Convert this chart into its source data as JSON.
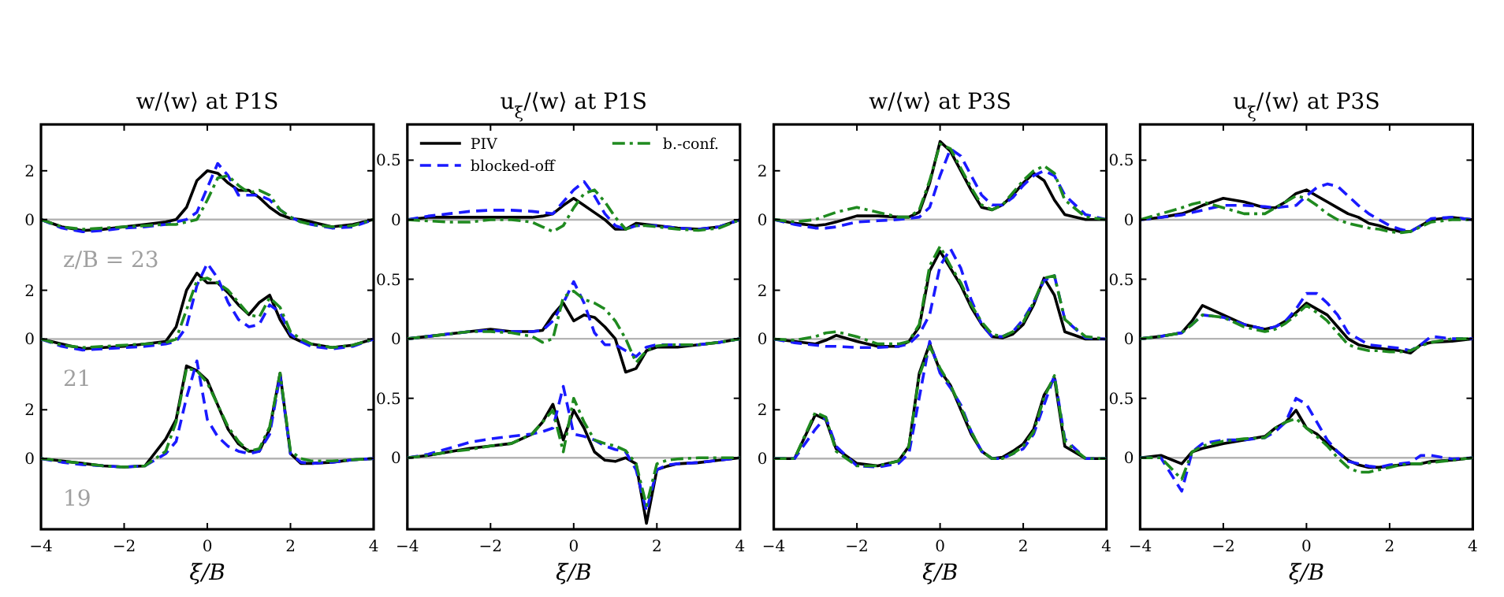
{
  "chart_data": [
    {
      "type": "line",
      "title": "w/⟨w⟩ at P1S",
      "tick_labels": "y",
      "x": [
        -4,
        -3.5,
        -3,
        -2.5,
        -2,
        -1.5,
        -1,
        -0.75,
        -0.5,
        -0.25,
        0,
        0.25,
        0.5,
        0.75,
        1,
        1.25,
        1.5,
        1.75,
        2,
        2.25,
        2.5,
        3,
        3.5,
        4
      ],
      "xlim": [
        -4,
        4
      ],
      "ylim": [
        -12.7,
        3.9
      ],
      "yticks": [
        0,
        2
      ],
      "ref_lines": [
        {
          "axis": "y",
          "value": 0,
          "color": "#b4b4b4"
        }
      ],
      "annotations": [
        "z/B = 23"
      ],
      "series": [
        {
          "color": "#000000",
          "line_style": "solid",
          "values": [
            0,
            -0.3,
            -0.45,
            -0.4,
            -0.3,
            -0.2,
            -0.1,
            0,
            0.5,
            1.6,
            2.0,
            1.9,
            1.5,
            1.2,
            1.2,
            0.9,
            0.5,
            0.2,
            0.05,
            0,
            -0.1,
            -0.3,
            -0.2,
            0
          ]
        },
        {
          "color": "#1a1aff",
          "line_style": "dashed",
          "values": [
            0,
            -0.35,
            -0.5,
            -0.45,
            -0.35,
            -0.3,
            -0.2,
            -0.1,
            0,
            0.3,
            1.3,
            2.3,
            1.8,
            1.0,
            1.0,
            1.0,
            0.8,
            0.4,
            0.1,
            -0.1,
            -0.2,
            -0.35,
            -0.3,
            0
          ]
        },
        {
          "color": "#1f8a1f",
          "line_style": "dashdot",
          "values": [
            0,
            -0.3,
            -0.4,
            -0.35,
            -0.3,
            -0.25,
            -0.2,
            -0.2,
            -0.1,
            0,
            0.8,
            1.7,
            1.8,
            1.4,
            1.1,
            1.2,
            1.0,
            0.4,
            0.1,
            -0.1,
            -0.2,
            -0.3,
            -0.25,
            0
          ]
        }
      ]
    },
    {
      "type": "line",
      "tick_labels": "y",
      "x": [
        -4,
        -3.5,
        -3,
        -2.5,
        -2,
        -1.5,
        -1,
        -0.75,
        -0.5,
        -0.25,
        0,
        0.25,
        0.5,
        0.75,
        1,
        1.25,
        1.5,
        1.75,
        2,
        2.25,
        2.5,
        3,
        3.5,
        4
      ],
      "xlim": [
        -4,
        4
      ],
      "ylim": [
        -7.8,
        8.8
      ],
      "yticks": [
        0,
        2
      ],
      "ref_lines": [
        {
          "axis": "y",
          "value": 0,
          "color": "#b4b4b4"
        }
      ],
      "annotations": [
        "21"
      ],
      "series": [
        {
          "color": "#000000",
          "line_style": "solid",
          "values": [
            0,
            -0.2,
            -0.4,
            -0.35,
            -0.3,
            -0.2,
            -0.1,
            0.5,
            2.0,
            2.7,
            2.3,
            2.3,
            1.9,
            1.4,
            1.0,
            1.5,
            1.8,
            0.8,
            0.1,
            -0.1,
            -0.2,
            -0.35,
            -0.25,
            0
          ]
        },
        {
          "color": "#1a1aff",
          "line_style": "dashed",
          "values": [
            0,
            -0.3,
            -0.45,
            -0.4,
            -0.35,
            -0.3,
            -0.2,
            -0.1,
            0.5,
            2.2,
            3.1,
            2.5,
            1.5,
            0.8,
            0.5,
            0.6,
            1.4,
            1.1,
            0.2,
            -0.1,
            -0.3,
            -0.4,
            -0.3,
            0
          ]
        },
        {
          "color": "#1f8a1f",
          "line_style": "dashdot",
          "values": [
            0,
            -0.25,
            -0.35,
            -0.3,
            -0.25,
            -0.2,
            -0.15,
            0,
            1.2,
            2.4,
            2.5,
            2.3,
            2.0,
            1.5,
            1.0,
            0.9,
            1.7,
            1.3,
            0.3,
            0,
            -0.2,
            -0.35,
            -0.25,
            0
          ]
        }
      ]
    },
    {
      "type": "line",
      "xlabel": "ξ/B",
      "x": [
        -4,
        -3.5,
        -3,
        -2.5,
        -2,
        -1.5,
        -1,
        -0.75,
        -0.5,
        -0.25,
        0,
        0.25,
        0.5,
        0.75,
        1,
        1.25,
        1.5,
        1.75,
        2,
        2.25,
        2.5,
        3,
        3.5,
        4
      ],
      "xlim": [
        -4,
        4
      ],
      "xticks": [
        -4,
        -2,
        0,
        2,
        4
      ],
      "ylim": [
        -2.9,
        13.7
      ],
      "yticks": [
        0,
        2
      ],
      "ref_lines": [
        {
          "axis": "y",
          "value": 0,
          "color": "#b4b4b4"
        }
      ],
      "annotations": [
        "19"
      ],
      "series": [
        {
          "color": "#000000",
          "line_style": "solid",
          "values": [
            0,
            -0.1,
            -0.2,
            -0.3,
            -0.35,
            -0.3,
            0.8,
            1.6,
            3.8,
            3.6,
            3.2,
            2.2,
            1.2,
            0.6,
            0.3,
            0.3,
            1.2,
            3.5,
            0.2,
            -0.2,
            -0.2,
            -0.15,
            -0.05,
            0
          ]
        },
        {
          "color": "#1a1aff",
          "line_style": "dashed",
          "values": [
            0,
            -0.15,
            -0.25,
            -0.3,
            -0.35,
            -0.3,
            0.2,
            0.7,
            2.5,
            4.0,
            1.6,
            0.9,
            0.5,
            0.3,
            0.2,
            0.3,
            1.0,
            3.4,
            0.2,
            -0.15,
            -0.2,
            -0.15,
            -0.05,
            0
          ]
        },
        {
          "color": "#1f8a1f",
          "line_style": "dashdot",
          "values": [
            0,
            -0.1,
            -0.2,
            -0.3,
            -0.35,
            -0.3,
            0.3,
            1.5,
            3.7,
            3.6,
            3.1,
            2.2,
            1.3,
            0.7,
            0.3,
            0.4,
            1.3,
            3.5,
            0.3,
            0,
            -0.1,
            -0.1,
            -0.05,
            0
          ]
        }
      ]
    },
    {
      "type": "line",
      "title": "u$_{ξ}$/⟨w⟩ at P1S",
      "tick_labels": "y",
      "legend": "top",
      "x": [
        -4,
        -3.5,
        -3,
        -2.5,
        -2,
        -1.5,
        -1,
        -0.75,
        -0.5,
        -0.25,
        0,
        0.25,
        0.5,
        0.75,
        1,
        1.25,
        1.5,
        1.75,
        2,
        2.25,
        2.5,
        3,
        3.5,
        4
      ],
      "xlim": [
        -4,
        4
      ],
      "ylim": [
        -2.6,
        0.8
      ],
      "yticks": [
        0,
        0.5
      ],
      "ref_lines": [
        {
          "axis": "y",
          "value": 0,
          "color": "#b4b4b4"
        }
      ],
      "series": [
        {
          "name": "PIV",
          "color": "#000000",
          "line_style": "solid",
          "values": [
            0,
            0.02,
            0.02,
            0.02,
            0.02,
            0.02,
            0.02,
            0.03,
            0.05,
            0.12,
            0.18,
            0.12,
            0.06,
            0,
            -0.08,
            -0.08,
            -0.03,
            -0.04,
            -0.05,
            -0.06,
            -0.07,
            -0.08,
            -0.06,
            0
          ]
        },
        {
          "name": "blocked-off",
          "color": "#1a1aff",
          "line_style": "dashed",
          "values": [
            0,
            0.03,
            0.05,
            0.07,
            0.08,
            0.08,
            0.07,
            0.06,
            0.05,
            0.15,
            0.25,
            0.32,
            0.2,
            0.05,
            -0.05,
            -0.08,
            -0.05,
            -0.05,
            -0.05,
            -0.06,
            -0.07,
            -0.08,
            -0.06,
            0
          ]
        },
        {
          "name": "b.-conf.",
          "color": "#1f8a1f",
          "line_style": "dashdot",
          "values": [
            0,
            -0.01,
            -0.02,
            -0.02,
            0,
            0,
            -0.02,
            -0.06,
            -0.1,
            -0.05,
            0.1,
            0.22,
            0.25,
            0.15,
            0.02,
            -0.08,
            -0.05,
            -0.05,
            -0.06,
            -0.07,
            -0.08,
            -0.09,
            -0.07,
            0
          ]
        }
      ]
    },
    {
      "type": "line",
      "tick_labels": "y",
      "x": [
        -4,
        -3.5,
        -3,
        -2.5,
        -2,
        -1.5,
        -1,
        -0.75,
        -0.5,
        -0.25,
        0,
        0.25,
        0.5,
        0.75,
        1,
        1.25,
        1.5,
        1.75,
        2,
        2.25,
        2.5,
        3,
        3.5,
        4
      ],
      "xlim": [
        -4,
        4
      ],
      "ylim": [
        -1.6,
        1.8
      ],
      "yticks": [
        0,
        0.5
      ],
      "ref_lines": [
        {
          "axis": "y",
          "value": 0,
          "color": "#b4b4b4"
        }
      ],
      "series": [
        {
          "color": "#000000",
          "line_style": "solid",
          "values": [
            0,
            0.02,
            0.04,
            0.06,
            0.08,
            0.06,
            0.06,
            0.07,
            0.2,
            0.3,
            0.15,
            0.2,
            0.18,
            0.1,
            0,
            -0.28,
            -0.25,
            -0.1,
            -0.07,
            -0.07,
            -0.07,
            -0.05,
            -0.03,
            0
          ]
        },
        {
          "color": "#1a1aff",
          "line_style": "dashed",
          "values": [
            0,
            0.02,
            0.04,
            0.06,
            0.07,
            0.06,
            0.06,
            0.07,
            0.15,
            0.3,
            0.48,
            0.3,
            0.05,
            -0.05,
            -0.05,
            -0.1,
            -0.15,
            -0.07,
            -0.05,
            -0.05,
            -0.05,
            -0.05,
            -0.03,
            0
          ]
        },
        {
          "color": "#1f8a1f",
          "line_style": "dashdot",
          "values": [
            0,
            0.02,
            0.04,
            0.06,
            0.06,
            0.05,
            0.02,
            -0.03,
            0,
            0.35,
            0.4,
            0.33,
            0.3,
            0.25,
            0.15,
            0,
            -0.2,
            -0.1,
            -0.06,
            -0.05,
            -0.05,
            -0.05,
            -0.03,
            0
          ]
        }
      ]
    },
    {
      "type": "line",
      "xlabel": "ξ/B",
      "x": [
        -4,
        -3.5,
        -3,
        -2.5,
        -2,
        -1.5,
        -1,
        -0.75,
        -0.5,
        -0.25,
        0,
        0.25,
        0.5,
        0.75,
        1,
        1.25,
        1.5,
        1.75,
        2,
        2.25,
        2.5,
        3,
        3.5,
        4
      ],
      "xlim": [
        -4,
        4
      ],
      "xticks": [
        -4,
        -2,
        0,
        2,
        4
      ],
      "ylim": [
        -0.6,
        2.8
      ],
      "yticks": [
        0,
        0.5
      ],
      "ref_lines": [
        {
          "axis": "y",
          "value": 0,
          "color": "#b4b4b4"
        }
      ],
      "series": [
        {
          "color": "#000000",
          "line_style": "solid",
          "values": [
            0,
            0.02,
            0.05,
            0.08,
            0.1,
            0.12,
            0.2,
            0.3,
            0.45,
            0.15,
            0.4,
            0.25,
            0.05,
            -0.02,
            -0.03,
            0,
            -0.05,
            -0.55,
            -0.1,
            -0.07,
            -0.05,
            -0.04,
            -0.02,
            0
          ]
        },
        {
          "color": "#1a1aff",
          "line_style": "dashed",
          "values": [
            0,
            0.03,
            0.08,
            0.13,
            0.16,
            0.18,
            0.2,
            0.22,
            0.25,
            0.6,
            0.2,
            0.18,
            0.15,
            0.1,
            0.07,
            0.05,
            -0.1,
            -0.45,
            -0.1,
            -0.06,
            -0.05,
            -0.04,
            -0.02,
            0
          ]
        },
        {
          "color": "#1f8a1f",
          "line_style": "dashdot",
          "values": [
            0,
            0.02,
            0.05,
            0.07,
            0.1,
            0.12,
            0.2,
            0.3,
            0.4,
            0.05,
            0.5,
            0.3,
            0.15,
            0.12,
            0.1,
            0.06,
            -0.05,
            -0.4,
            -0.05,
            -0.02,
            -0.01,
            0,
            0,
            0
          ]
        }
      ]
    },
    {
      "type": "line",
      "title": "w/⟨w⟩ at P3S",
      "tick_labels": "y",
      "x": [
        -4,
        -3.5,
        -3,
        -2.75,
        -2.5,
        -2,
        -1.5,
        -1,
        -0.75,
        -0.5,
        -0.25,
        0,
        0.25,
        0.5,
        0.75,
        1,
        1.25,
        1.5,
        1.75,
        2,
        2.25,
        2.5,
        2.75,
        3,
        3.5,
        4
      ],
      "xlim": [
        -4,
        4
      ],
      "ylim": [
        -12.7,
        3.9
      ],
      "yticks": [
        0,
        2
      ],
      "ref_lines": [
        {
          "axis": "y",
          "value": 0,
          "color": "#b4b4b4"
        }
      ],
      "series": [
        {
          "color": "#000000",
          "line_style": "solid",
          "values": [
            0,
            -0.15,
            -0.25,
            -0.2,
            -0.1,
            0.15,
            0.15,
            0.1,
            0.1,
            0.3,
            1.5,
            3.2,
            2.8,
            2.0,
            1.2,
            0.5,
            0.4,
            0.6,
            1.0,
            1.5,
            1.9,
            1.6,
            0.8,
            0.2,
            0,
            0
          ]
        },
        {
          "color": "#1a1aff",
          "line_style": "dashed",
          "values": [
            0,
            -0.2,
            -0.35,
            -0.35,
            -0.3,
            -0.1,
            -0.05,
            0,
            0.05,
            0.1,
            0.5,
            1.8,
            2.9,
            2.6,
            1.8,
            1.0,
            0.6,
            0.6,
            0.9,
            1.4,
            1.8,
            2.0,
            1.8,
            1.0,
            0.2,
            0
          ]
        },
        {
          "color": "#1f8a1f",
          "line_style": "dashdot",
          "values": [
            0,
            -0.1,
            0,
            0.15,
            0.3,
            0.5,
            0.3,
            0.1,
            0.1,
            0.4,
            1.6,
            3.1,
            2.9,
            2.1,
            1.3,
            0.6,
            0.4,
            0.6,
            1.1,
            1.6,
            2.0,
            2.2,
            1.9,
            0.8,
            0.1,
            0
          ]
        }
      ]
    },
    {
      "type": "line",
      "tick_labels": "y",
      "x": [
        -4,
        -3.5,
        -3,
        -2.75,
        -2.5,
        -2,
        -1.5,
        -1,
        -0.75,
        -0.5,
        -0.25,
        0,
        0.25,
        0.5,
        0.75,
        1,
        1.25,
        1.5,
        1.75,
        2,
        2.25,
        2.5,
        2.75,
        3,
        3.5,
        4
      ],
      "xlim": [
        -4,
        4
      ],
      "ylim": [
        -7.8,
        8.8
      ],
      "yticks": [
        0,
        2
      ],
      "ref_lines": [
        {
          "axis": "y",
          "value": 0,
          "color": "#b4b4b4"
        }
      ],
      "series": [
        {
          "color": "#000000",
          "line_style": "solid",
          "values": [
            0,
            -0.1,
            -0.2,
            -0.05,
            0.15,
            -0.1,
            -0.3,
            -0.3,
            -0.1,
            0.5,
            2.8,
            3.6,
            2.9,
            2.2,
            1.3,
            0.6,
            0.1,
            0.05,
            0.2,
            0.6,
            1.4,
            2.5,
            1.8,
            0.3,
            0,
            0
          ]
        },
        {
          "color": "#1a1aff",
          "line_style": "dashed",
          "values": [
            0,
            -0.15,
            -0.25,
            -0.3,
            -0.3,
            -0.35,
            -0.35,
            -0.3,
            -0.2,
            0.2,
            1.0,
            3.0,
            3.7,
            2.9,
            1.6,
            0.6,
            0.1,
            0.1,
            0.3,
            0.8,
            1.5,
            2.4,
            2.6,
            0.8,
            0.05,
            0
          ]
        },
        {
          "color": "#1f8a1f",
          "line_style": "dashdot",
          "values": [
            0,
            -0.05,
            0.1,
            0.25,
            0.3,
            0.1,
            -0.2,
            -0.2,
            -0.1,
            0.6,
            3.0,
            3.8,
            3.0,
            2.3,
            1.4,
            0.7,
            0.2,
            0.1,
            0.3,
            0.7,
            1.5,
            2.5,
            2.6,
            0.8,
            0.1,
            0
          ]
        }
      ]
    },
    {
      "type": "line",
      "xlabel": "ξ/B",
      "x": [
        -4,
        -3.5,
        -3,
        -2.75,
        -2.5,
        -2,
        -1.5,
        -1,
        -0.75,
        -0.5,
        -0.25,
        0,
        0.25,
        0.5,
        0.75,
        1,
        1.25,
        1.5,
        1.75,
        2,
        2.25,
        2.5,
        2.75,
        3,
        3.5,
        4
      ],
      "xlim": [
        -4,
        4
      ],
      "xticks": [
        -4,
        -2,
        0,
        2,
        4
      ],
      "ylim": [
        -2.9,
        13.7
      ],
      "yticks": [
        0,
        2
      ],
      "ref_lines": [
        {
          "axis": "y",
          "value": 0,
          "color": "#b4b4b4"
        }
      ],
      "series": [
        {
          "color": "#000000",
          "line_style": "solid",
          "values": [
            0,
            0,
            1.8,
            1.6,
            0.4,
            -0.2,
            -0.3,
            -0.1,
            0.5,
            3.5,
            4.7,
            3.6,
            3.0,
            2.0,
            1.0,
            0.3,
            0,
            0.05,
            0.3,
            0.6,
            1.2,
            2.6,
            3.3,
            0.5,
            0,
            0
          ]
        },
        {
          "color": "#1a1aff",
          "line_style": "dashed",
          "values": [
            0,
            0,
            1.2,
            1.7,
            0.5,
            -0.3,
            -0.35,
            -0.2,
            0.2,
            2.5,
            4.8,
            3.5,
            2.9,
            2.2,
            1.1,
            0.3,
            0,
            0,
            0.2,
            0.4,
            1.0,
            2.2,
            3.4,
            0.8,
            0,
            0
          ]
        },
        {
          "color": "#1f8a1f",
          "line_style": "dashdot",
          "values": [
            0,
            0,
            1.9,
            1.7,
            0.3,
            -0.3,
            -0.3,
            -0.1,
            0.5,
            3.4,
            4.6,
            3.7,
            3.0,
            2.1,
            1.1,
            0.3,
            0,
            0,
            0.2,
            0.5,
            1.1,
            2.5,
            3.4,
            0.7,
            0,
            0
          ]
        }
      ]
    },
    {
      "type": "line",
      "title": "u$_{ξ}$/⟨w⟩ at P3S",
      "tick_labels": "y",
      "x": [
        -4,
        -3.5,
        -3,
        -2.75,
        -2.5,
        -2,
        -1.5,
        -1,
        -0.75,
        -0.5,
        -0.25,
        0,
        0.25,
        0.5,
        0.75,
        1,
        1.25,
        1.5,
        1.75,
        2,
        2.25,
        2.5,
        2.75,
        3,
        3.5,
        4
      ],
      "xlim": [
        -4,
        4
      ],
      "ylim": [
        -2.6,
        0.8
      ],
      "yticks": [
        0,
        0.5
      ],
      "ref_lines": [
        {
          "axis": "y",
          "value": 0,
          "color": "#b4b4b4"
        }
      ],
      "series": [
        {
          "color": "#000000",
          "line_style": "solid",
          "values": [
            0,
            0.02,
            0.05,
            0.08,
            0.12,
            0.18,
            0.15,
            0.1,
            0.1,
            0.15,
            0.22,
            0.25,
            0.2,
            0.15,
            0.1,
            0.05,
            0.02,
            -0.03,
            -0.05,
            -0.08,
            -0.1,
            -0.1,
            -0.05,
            0,
            0.02,
            0
          ]
        },
        {
          "color": "#1a1aff",
          "line_style": "dashed",
          "values": [
            0,
            0.02,
            0.04,
            0.06,
            0.08,
            0.12,
            0.12,
            0.11,
            0.1,
            0.11,
            0.12,
            0.2,
            0.27,
            0.3,
            0.28,
            0.2,
            0.12,
            0.05,
            0,
            -0.05,
            -0.08,
            -0.1,
            -0.05,
            0.01,
            0.02,
            0
          ]
        },
        {
          "color": "#1f8a1f",
          "line_style": "dashdot",
          "values": [
            0,
            0.05,
            0.1,
            0.13,
            0.15,
            0.1,
            0.05,
            0.05,
            0.1,
            0.15,
            0.2,
            0.18,
            0.12,
            0.05,
            0,
            -0.03,
            -0.05,
            -0.07,
            -0.08,
            -0.1,
            -0.11,
            -0.1,
            -0.06,
            -0.02,
            0,
            0
          ]
        }
      ]
    },
    {
      "type": "line",
      "tick_labels": "y",
      "x": [
        -4,
        -3.5,
        -3,
        -2.75,
        -2.5,
        -2,
        -1.5,
        -1,
        -0.75,
        -0.5,
        -0.25,
        0,
        0.25,
        0.5,
        0.75,
        1,
        1.25,
        1.5,
        1.75,
        2,
        2.25,
        2.5,
        2.75,
        3,
        3.5,
        4
      ],
      "xlim": [
        -4,
        4
      ],
      "ylim": [
        -1.6,
        1.8
      ],
      "yticks": [
        0,
        0.5
      ],
      "ref_lines": [
        {
          "axis": "y",
          "value": 0,
          "color": "#b4b4b4"
        }
      ],
      "series": [
        {
          "color": "#000000",
          "line_style": "solid",
          "values": [
            0,
            0.02,
            0.05,
            0.15,
            0.28,
            0.2,
            0.12,
            0.08,
            0.1,
            0.15,
            0.22,
            0.3,
            0.25,
            0.2,
            0.1,
            0,
            -0.05,
            -0.07,
            -0.08,
            -0.09,
            -0.1,
            -0.12,
            -0.05,
            -0.03,
            -0.02,
            0
          ]
        },
        {
          "color": "#1a1aff",
          "line_style": "dashed",
          "values": [
            0,
            0.02,
            0.05,
            0.12,
            0.2,
            0.18,
            0.12,
            0.08,
            0.1,
            0.15,
            0.25,
            0.38,
            0.38,
            0.3,
            0.2,
            0.05,
            0,
            -0.05,
            -0.06,
            -0.07,
            -0.08,
            -0.1,
            -0.05,
            0.02,
            0,
            0
          ]
        },
        {
          "color": "#1f8a1f",
          "line_style": "dashdot",
          "values": [
            0,
            0.02,
            0.05,
            0.12,
            0.2,
            0.18,
            0.1,
            0.06,
            0.08,
            0.13,
            0.2,
            0.28,
            0.22,
            0.15,
            0.05,
            -0.05,
            -0.08,
            -0.1,
            -0.1,
            -0.11,
            -0.11,
            -0.1,
            -0.06,
            -0.03,
            0,
            0
          ]
        }
      ]
    },
    {
      "type": "line",
      "xlabel": "ξ/B",
      "x": [
        -4,
        -3.5,
        -3,
        -2.75,
        -2.5,
        -2,
        -1.5,
        -1,
        -0.75,
        -0.5,
        -0.25,
        0,
        0.25,
        0.5,
        0.75,
        1,
        1.25,
        1.5,
        1.75,
        2,
        2.25,
        2.5,
        2.75,
        3,
        3.5,
        4
      ],
      "xlim": [
        -4,
        4
      ],
      "xticks": [
        -4,
        -2,
        0,
        2,
        4
      ],
      "ylim": [
        -0.6,
        2.8
      ],
      "yticks": [
        0,
        0.5
      ],
      "ref_lines": [
        {
          "axis": "y",
          "value": 0,
          "color": "#b4b4b4"
        }
      ],
      "series": [
        {
          "color": "#000000",
          "line_style": "solid",
          "values": [
            0,
            0.02,
            -0.05,
            0.05,
            0.08,
            0.12,
            0.15,
            0.18,
            0.25,
            0.3,
            0.4,
            0.25,
            0.2,
            0.12,
            0.05,
            -0.02,
            -0.06,
            -0.08,
            -0.08,
            -0.07,
            -0.06,
            -0.05,
            -0.05,
            -0.03,
            -0.02,
            0
          ]
        },
        {
          "color": "#1a1aff",
          "line_style": "dashed",
          "values": [
            0,
            0,
            -0.28,
            0.05,
            0.12,
            0.15,
            0.15,
            0.17,
            0.22,
            0.3,
            0.5,
            0.45,
            0.3,
            0.15,
            0.05,
            -0.03,
            -0.05,
            -0.07,
            -0.08,
            -0.06,
            -0.05,
            -0.04,
            0.02,
            0.02,
            -0.01,
            0
          ]
        },
        {
          "color": "#1f8a1f",
          "line_style": "dashdot",
          "values": [
            0,
            0,
            -0.18,
            0.05,
            0.1,
            0.14,
            0.16,
            0.17,
            0.25,
            0.3,
            0.33,
            0.25,
            0.18,
            0.1,
            0,
            -0.08,
            -0.12,
            -0.12,
            -0.1,
            -0.08,
            -0.06,
            -0.05,
            -0.05,
            -0.04,
            -0.02,
            0
          ]
        }
      ]
    }
  ]
}
